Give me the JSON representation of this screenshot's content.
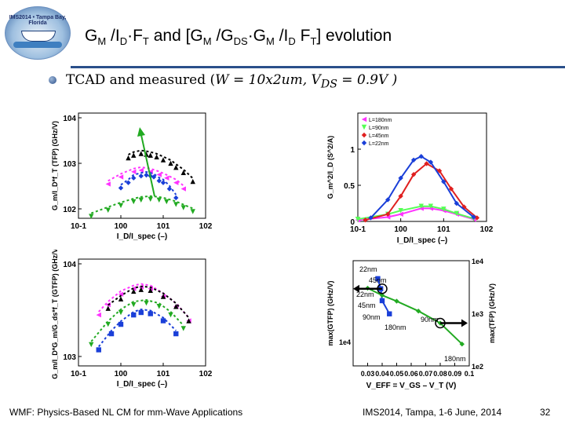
{
  "slide": {
    "title_parts": [
      "G",
      "M",
      " /I",
      "D",
      "·F",
      "T",
      " and [G",
      "M",
      " /G",
      "DS",
      "·G",
      "M",
      " /I",
      "D",
      " F",
      "T",
      "] evolution"
    ],
    "logo_text": "IMS2014 • Tampa Bay, Florida",
    "bullet_text": "TCAD and measured (",
    "bullet_math": "W = 10x2um, V",
    "bullet_math_sub": "DS",
    "bullet_math_end": " = 0.9V )"
  },
  "footer": {
    "left": "WMF: Physics-Based NL CM for mm-Wave Applications",
    "center": "IMS2014, Tampa, 1-6 June, 2014",
    "page": "32"
  },
  "colors": {
    "black": "#000000",
    "magenta": "#ff33ff",
    "green": "#22aa22",
    "blue": "#1a3fd8",
    "red": "#e02020",
    "lightgreen": "#55ff55",
    "accent": "#2a4f8a"
  },
  "legend_top_right": [
    "L=180nm",
    "L=90nm",
    "L=45nm",
    "L=22nm"
  ],
  "bottom_right_labels": [
    "22nm",
    "45nm",
    "22nm",
    "45nm",
    "90nm",
    "180nm",
    "90nm",
    "180nm"
  ],
  "chart_data": [
    {
      "type": "scatter",
      "title": "",
      "ylabel": "G_m/I_D*f_T (TFP) (GHz/V)",
      "xlabel": "I_D/I_spec (–)",
      "x_scale": "log",
      "y_scale": "log",
      "xlim": [
        0.1,
        100
      ],
      "ylim": [
        50,
        10000
      ],
      "xticks": [
        "10-1",
        "100",
        "101",
        "102"
      ],
      "yticks": [
        "102",
        "103",
        "104"
      ],
      "series": [
        {
          "color": "black",
          "marker": "triangle-up",
          "x": [
            1.5,
            2,
            3,
            4,
            5,
            7,
            10,
            15,
            20,
            30,
            50
          ],
          "y": [
            1050,
            1200,
            1300,
            1250,
            1200,
            1100,
            950,
            800,
            650,
            500,
            320
          ]
        },
        {
          "color": "magenta",
          "marker": "triangle-left",
          "x": [
            0.5,
            1,
            2,
            3,
            5,
            8,
            12,
            20,
            30
          ],
          "y": [
            280,
            400,
            520,
            560,
            520,
            450,
            380,
            300,
            220
          ]
        },
        {
          "color": "blue",
          "marker": "diamond",
          "x": [
            1,
            1.5,
            2,
            3,
            4,
            5,
            6,
            8,
            10,
            14,
            20
          ],
          "y": [
            230,
            300,
            380,
            420,
            440,
            420,
            400,
            330,
            300,
            220,
            140
          ]
        },
        {
          "color": "green",
          "marker": "triangle-down",
          "x": [
            0.2,
            0.5,
            1,
            2,
            3,
            5,
            8,
            12,
            20,
            30,
            50
          ],
          "y": [
            55,
            75,
            95,
            115,
            125,
            130,
            125,
            115,
            100,
            85,
            70
          ]
        }
      ]
    },
    {
      "type": "line",
      "title": "",
      "ylabel": "G_m^2/I_D (S^2/A)",
      "xlabel": "I_D/I_spec (–)",
      "x_scale": "log",
      "xlim": [
        0.1,
        100
      ],
      "ylim": [
        0,
        1.5
      ],
      "xticks": [
        "10-1",
        "100",
        "101",
        "102"
      ],
      "yticks": [
        "0",
        "0.5",
        "1"
      ],
      "legend": [
        "L=180nm",
        "L=90nm",
        "L=45nm",
        "L=22nm"
      ],
      "series": [
        {
          "name": "L=180nm",
          "color": "magenta",
          "x": [
            0.1,
            0.5,
            1,
            3,
            5,
            10,
            20,
            50
          ],
          "y": [
            0.02,
            0.06,
            0.1,
            0.18,
            0.18,
            0.15,
            0.1,
            0.03
          ]
        },
        {
          "name": "L=90nm",
          "color": "lightgreen",
          "x": [
            0.1,
            0.5,
            1,
            3,
            5,
            10,
            20,
            50
          ],
          "y": [
            0.03,
            0.1,
            0.15,
            0.21,
            0.21,
            0.17,
            0.11,
            0.04
          ]
        },
        {
          "name": "L=45nm",
          "color": "red",
          "x": [
            0.15,
            0.5,
            1,
            2,
            4,
            8,
            15,
            30,
            60
          ],
          "y": [
            0.02,
            0.1,
            0.35,
            0.65,
            0.8,
            0.7,
            0.45,
            0.2,
            0.05
          ]
        },
        {
          "name": "L=22nm",
          "color": "blue",
          "x": [
            0.2,
            0.5,
            1,
            2,
            3,
            5,
            10,
            20,
            50
          ],
          "y": [
            0.05,
            0.3,
            0.6,
            0.85,
            0.9,
            0.82,
            0.55,
            0.25,
            0.06
          ]
        }
      ]
    },
    {
      "type": "scatter",
      "title": "",
      "ylabel": "G_m/I_D*G_m/G_ds*f_T (GTFP) (GHz/V)",
      "xlabel": "I_D/I_spec (–)",
      "x_scale": "log",
      "y_scale": "log",
      "xlim": [
        0.1,
        100
      ],
      "ylim": [
        1000,
        100000
      ],
      "xticks": [
        "10-1",
        "100",
        "101",
        "102"
      ],
      "yticks": [
        "103",
        "104"
      ],
      "series": [
        {
          "color": "magenta",
          "marker": "triangle-left",
          "x": [
            0.3,
            0.5,
            1,
            2,
            3,
            5,
            10,
            20,
            40
          ],
          "y": [
            9000,
            14000,
            22000,
            28000,
            30000,
            28000,
            20000,
            13000,
            7000
          ]
        },
        {
          "color": "black",
          "marker": "triangle-up",
          "x": [
            0.5,
            1,
            2,
            3,
            5,
            10,
            20,
            40
          ],
          "y": [
            12000,
            18000,
            25000,
            27000,
            26000,
            20000,
            13000,
            7000
          ]
        },
        {
          "color": "green",
          "marker": "triangle-down",
          "x": [
            0.2,
            0.5,
            1,
            2,
            4,
            8,
            15,
            30
          ],
          "y": [
            2500,
            6000,
            10000,
            14000,
            15000,
            13000,
            9000,
            5000
          ]
        },
        {
          "color": "blue",
          "marker": "square",
          "x": [
            0.3,
            0.6,
            1,
            2,
            3,
            5,
            10,
            20
          ],
          "y": [
            2000,
            4000,
            6000,
            9000,
            10000,
            9500,
            7000,
            4000
          ]
        }
      ]
    },
    {
      "type": "line",
      "title": "",
      "ylabel": "max(GTFP) (GHz/V)",
      "ylabel_right": "max(TFP) (GHz/V)",
      "xlabel": "V_EFF = V_GS – V_T (V)",
      "xlim": [
        0.02,
        0.1
      ],
      "xticks": [
        "0.03",
        "0.04",
        "0.05",
        "0.06",
        "0.07",
        "0.08",
        "0.09",
        "0.1"
      ],
      "yticks": [
        "1e4"
      ],
      "yticks_right": [
        "1e4",
        "1e3",
        "1e2"
      ],
      "series": [
        {
          "name": "max(GTFP)",
          "color": "blue",
          "x": [
            0.037,
            0.039,
            0.04,
            0.045
          ],
          "y": [
            60000,
            45000,
            32000,
            22000
          ]
        },
        {
          "name": "max(TFP)",
          "color": "green",
          "x": [
            0.03,
            0.04,
            0.05,
            0.065,
            0.08,
            0.095
          ],
          "y": [
            3000,
            2200,
            1700,
            1100,
            650,
            260
          ]
        }
      ]
    }
  ]
}
